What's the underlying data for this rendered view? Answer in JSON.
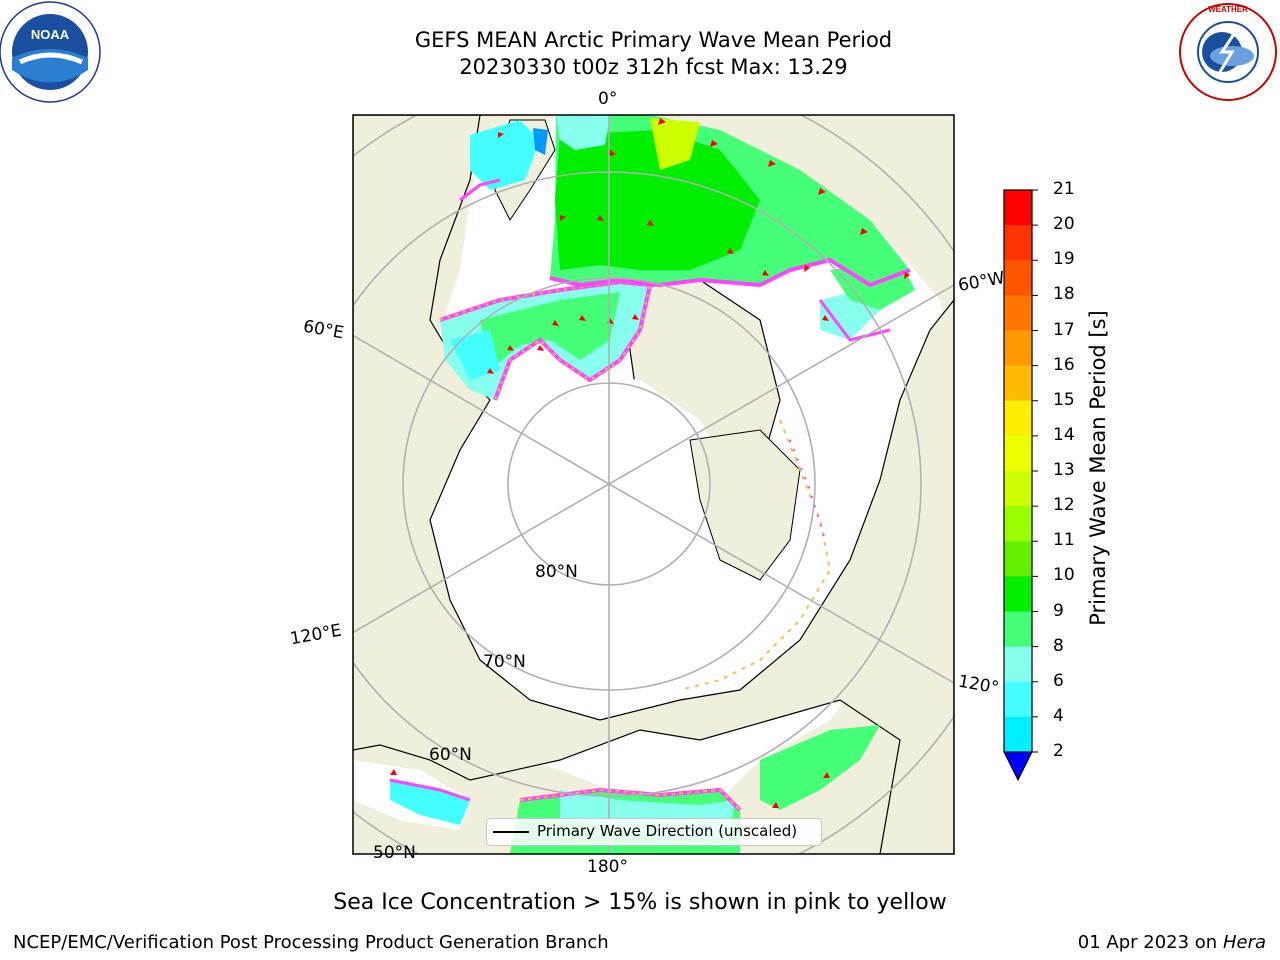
{
  "title_line1": "GEFS MEAN Arctic Primary Wave Mean Period",
  "title_line2": "20230330 t00z 312h fcst   Max: 13.29",
  "logos": {
    "left": "NOAA",
    "right": "NATIONAL WEATHER SERVICE"
  },
  "map_labels": {
    "lon_0": "0°",
    "lon_60w": "60°W",
    "lon_60e": "60°E",
    "lon_120e": "120°E",
    "lon_120w": "120°",
    "lon_180": "180°",
    "lat_80": "80°N",
    "lat_70": "70°N",
    "lat_60": "60°N",
    "lat_50": "50°N"
  },
  "legend_label": "Primary Wave Direction (unscaled)",
  "colorbar": {
    "title": "Primary Wave Mean Period [s]",
    "ticks": [
      "21",
      "20",
      "19",
      "18",
      "17",
      "16",
      "15",
      "14",
      "13",
      "12",
      "11",
      "10",
      "9",
      "8",
      "6",
      "4",
      "2"
    ],
    "colors": [
      "#ff0000",
      "#ff3300",
      "#ff5500",
      "#ff7700",
      "#ff9900",
      "#ffbb00",
      "#ffee00",
      "#eeff00",
      "#ccff00",
      "#99ff00",
      "#66ee00",
      "#00ee00",
      "#44ff77",
      "#88ffee",
      "#44ffff",
      "#00f0ff",
      "#0099ff",
      "#0066ff"
    ],
    "extend_color": "#0000ff"
  },
  "caption": "Sea Ice Concentration > 15% is shown in pink to yellow",
  "footer_left": "NCEP/EMC/Verification Post Processing Product Generation Branch",
  "footer_right_date": "01 Apr 2023 on",
  "footer_right_machine": "Hera"
}
